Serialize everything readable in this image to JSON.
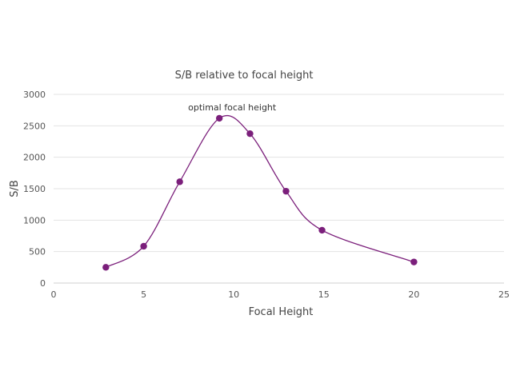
{
  "chart_data": {
    "type": "scatter",
    "title": "S/B relative to focal height",
    "xlabel": "Focal Height",
    "ylabel": "S/B",
    "xlim": [
      0,
      25
    ],
    "ylim": [
      0,
      3000
    ],
    "xticks": [
      0,
      5,
      10,
      15,
      20,
      25
    ],
    "yticks": [
      0,
      500,
      1000,
      1500,
      2000,
      2500,
      3000
    ],
    "grid": "horizontal",
    "smooth_line": true,
    "color": "#7b1f7b",
    "series": [
      {
        "x": [
          2.9,
          5.0,
          7.0,
          9.2,
          10.9,
          12.9,
          14.9,
          20.0
        ],
        "y": [
          250,
          585,
          1610,
          2620,
          2375,
          1460,
          840,
          335
        ]
      }
    ],
    "annotations": [
      {
        "text": "optimal focal height",
        "x": 9.2,
        "y": 2620
      }
    ]
  }
}
